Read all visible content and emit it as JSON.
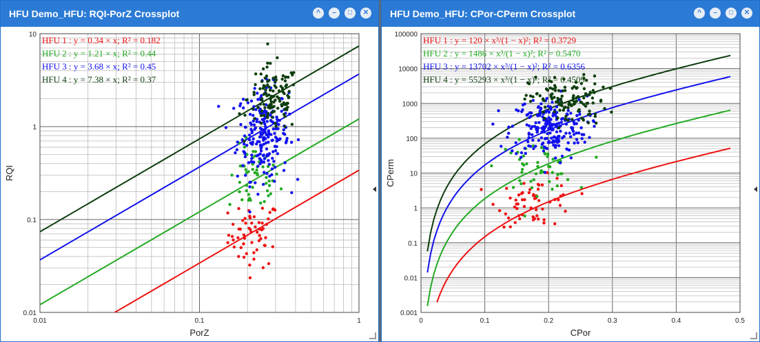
{
  "left_window": {
    "title": "HFU Demo_HFU: RQI-PorZ Crossplot"
  },
  "right_window": {
    "title": "HFU Demo_HFU: CPor-CPerm Crossplot"
  },
  "window_buttons": [
    "^",
    "–",
    "□",
    "✕"
  ],
  "colors": {
    "hfu1": "#ee1111",
    "hfu2": "#22aa22",
    "hfu3": "#1111ee",
    "hfu4": "#0d3d0d"
  },
  "chart_data": [
    {
      "type": "scatter",
      "xlabel": "PorZ",
      "ylabel": "RQI",
      "xscale": "log",
      "yscale": "log",
      "xlim": [
        0.01,
        1
      ],
      "ylim": [
        0.01,
        10
      ],
      "xticks": [
        "0.01",
        "0.1",
        "1"
      ],
      "yticks": [
        "0.01",
        "0.1",
        "1",
        "10"
      ],
      "grid": true,
      "legend_position": "top-left",
      "series": [
        {
          "name": "HFU 1",
          "label": "HFU 1 : y = 0.34 × x; R² = 0.182",
          "coef": 0.34,
          "r2": 0.182,
          "center": [
            0.22,
            0.07
          ],
          "count": 60
        },
        {
          "name": "HFU 2",
          "label": "HFU 2 : y = 1.21 × x; R² = 0.44",
          "coef": 1.21,
          "r2": 0.44,
          "center": [
            0.22,
            0.27
          ],
          "count": 50
        },
        {
          "name": "HFU 3",
          "label": "HFU 3 : y = 3.68 × x; R² = 0.45",
          "coef": 3.68,
          "r2": 0.45,
          "center": [
            0.25,
            0.85
          ],
          "count": 220
        },
        {
          "name": "HFU 4",
          "label": "HFU 4 : y = 7.38 × x; R² = 0.37",
          "coef": 7.38,
          "r2": 0.37,
          "center": [
            0.29,
            2.0
          ],
          "count": 120
        }
      ]
    },
    {
      "type": "scatter",
      "xlabel": "CPor",
      "ylabel": "CPerm",
      "xscale": "linear",
      "yscale": "log",
      "xlim": [
        0,
        0.5
      ],
      "ylim": [
        0.001,
        100000
      ],
      "xticks": [
        "0",
        "0.1",
        "0.2",
        "0.3",
        "0.4",
        "0.5"
      ],
      "yticks": [
        "0.001",
        "0.01",
        "0.1",
        "1",
        "10",
        "100",
        "1000",
        "10000",
        "100000"
      ],
      "grid": true,
      "legend_position": "top-left",
      "series": [
        {
          "name": "HFU 1",
          "label": "HFU 1 : y = 120 × x³/(1 − x)²; R² = 0.3729",
          "coef": 120,
          "r2": 0.3729,
          "center": [
            0.18,
            1.5
          ],
          "count": 60
        },
        {
          "name": "HFU 2",
          "label": "HFU 2 : y = 1486 × x³/(1 − x)²; R² = 0.5470",
          "coef": 1486,
          "r2": 0.547,
          "center": [
            0.18,
            15
          ],
          "count": 50
        },
        {
          "name": "HFU 3",
          "label": "HFU 3 : y = 13702 × x³/(1 − x)²; R² = 0.6356",
          "coef": 13702,
          "r2": 0.6356,
          "center": [
            0.2,
            200
          ],
          "count": 220
        },
        {
          "name": "HFU 4",
          "label": "HFU 4 : y = 55293 × x³/(1 − x)²; R² = 0.4509",
          "coef": 55293,
          "r2": 0.4509,
          "center": [
            0.23,
            1200
          ],
          "count": 120
        }
      ]
    }
  ]
}
